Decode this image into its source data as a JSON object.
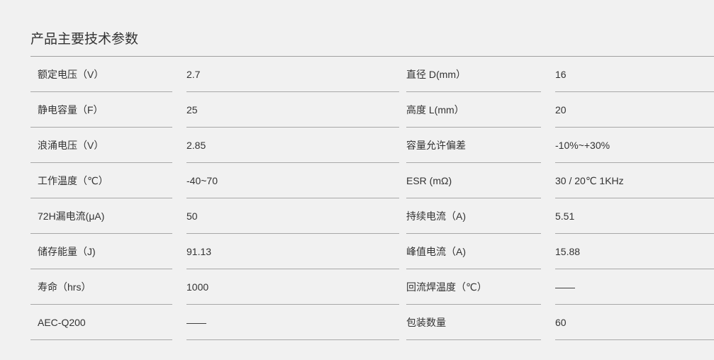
{
  "title": "产品主要技术参数",
  "rows": [
    {
      "label1": "额定电压（V）",
      "value1": "2.7",
      "label2": "直径 D(mm）",
      "value2": "16"
    },
    {
      "label1": "静电容量（F）",
      "value1": "25",
      "label2": "高度 L(mm）",
      "value2": "20"
    },
    {
      "label1": "浪涌电压（V）",
      "value1": "2.85",
      "label2": "容量允许偏差",
      "value2": "-10%~+30%"
    },
    {
      "label1": "工作温度（℃）",
      "value1": "-40~70",
      "label2": "ESR (mΩ)",
      "value2": "30 / 20℃ 1KHz"
    },
    {
      "label1": "72H漏电流(μA)",
      "value1": "50",
      "label2": "持续电流（A)",
      "value2": "5.51"
    },
    {
      "label1": "储存能量（J)",
      "value1": "91.13",
      "label2": "峰值电流（A)",
      "value2": "15.88"
    },
    {
      "label1": "寿命（hrs）",
      "value1": "1000",
      "label2": "回流焊温度（℃）",
      "value2": "——"
    },
    {
      "label1": "AEC-Q200",
      "value1": "——",
      "label2": "包装数量",
      "value2": "60"
    }
  ]
}
